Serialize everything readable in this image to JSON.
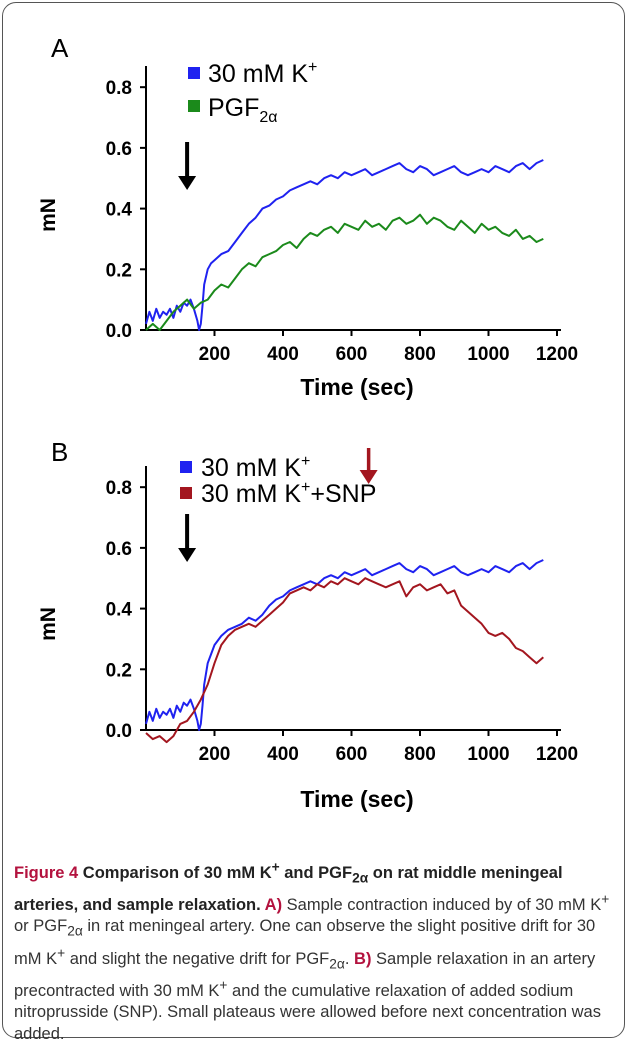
{
  "chart_data": [
    {
      "panel": "A",
      "type": "line",
      "xlabel": "Time (sec)",
      "ylabel": "mN",
      "xlim": [
        0,
        1200
      ],
      "ylim": [
        0,
        0.85
      ],
      "xticks": [
        "200",
        "400",
        "600",
        "800",
        "1000",
        "1200"
      ],
      "yticks": [
        "0.0",
        "0.2",
        "0.4",
        "0.6",
        "0.8"
      ],
      "legend_position": "top-left",
      "arrow_color": "#000000",
      "arrow_x": 120,
      "series": [
        {
          "label_main": "30 mM K",
          "label_sup": "+",
          "color": "#1f22f0",
          "x": [
            0,
            10,
            20,
            30,
            40,
            50,
            60,
            70,
            80,
            90,
            100,
            110,
            120,
            130,
            140,
            150,
            155,
            160,
            165,
            170,
            180,
            190,
            200,
            220,
            240,
            260,
            280,
            300,
            320,
            340,
            360,
            380,
            400,
            420,
            440,
            460,
            480,
            500,
            520,
            540,
            560,
            580,
            600,
            620,
            640,
            660,
            680,
            700,
            720,
            740,
            760,
            780,
            800,
            820,
            840,
            860,
            880,
            900,
            920,
            940,
            960,
            980,
            1000,
            1020,
            1040,
            1060,
            1080,
            1100,
            1120,
            1140,
            1160
          ],
          "y": [
            0.02,
            0.06,
            0.03,
            0.07,
            0.04,
            0.06,
            0.05,
            0.07,
            0.04,
            0.08,
            0.06,
            0.09,
            0.08,
            0.1,
            0.07,
            0.03,
            0.0,
            0.02,
            0.08,
            0.15,
            0.2,
            0.22,
            0.23,
            0.25,
            0.26,
            0.29,
            0.32,
            0.35,
            0.37,
            0.4,
            0.41,
            0.43,
            0.44,
            0.46,
            0.47,
            0.48,
            0.49,
            0.48,
            0.5,
            0.51,
            0.5,
            0.52,
            0.51,
            0.52,
            0.53,
            0.51,
            0.52,
            0.53,
            0.54,
            0.55,
            0.53,
            0.52,
            0.54,
            0.53,
            0.51,
            0.52,
            0.53,
            0.54,
            0.52,
            0.51,
            0.52,
            0.53,
            0.52,
            0.54,
            0.53,
            0.52,
            0.54,
            0.55,
            0.53,
            0.55,
            0.56
          ]
        },
        {
          "label_main": "PGF",
          "label_sub": "2α",
          "color": "#1b8a1b",
          "x": [
            0,
            20,
            40,
            60,
            80,
            100,
            120,
            140,
            160,
            180,
            200,
            220,
            240,
            260,
            280,
            300,
            320,
            340,
            360,
            380,
            400,
            420,
            440,
            460,
            480,
            500,
            520,
            540,
            560,
            580,
            600,
            620,
            640,
            660,
            680,
            700,
            720,
            740,
            760,
            780,
            800,
            820,
            840,
            860,
            880,
            900,
            920,
            940,
            960,
            980,
            1000,
            1020,
            1040,
            1060,
            1080,
            1100,
            1120,
            1140,
            1160
          ],
          "y": [
            0.0,
            0.02,
            0.0,
            0.03,
            0.06,
            0.08,
            0.1,
            0.07,
            0.09,
            0.1,
            0.13,
            0.15,
            0.14,
            0.17,
            0.2,
            0.22,
            0.21,
            0.24,
            0.25,
            0.26,
            0.28,
            0.29,
            0.27,
            0.3,
            0.32,
            0.31,
            0.33,
            0.34,
            0.32,
            0.35,
            0.34,
            0.33,
            0.36,
            0.34,
            0.35,
            0.33,
            0.36,
            0.37,
            0.35,
            0.36,
            0.38,
            0.35,
            0.37,
            0.36,
            0.34,
            0.33,
            0.36,
            0.34,
            0.32,
            0.35,
            0.33,
            0.34,
            0.32,
            0.31,
            0.33,
            0.3,
            0.31,
            0.29,
            0.3
          ]
        }
      ]
    },
    {
      "panel": "B",
      "type": "line",
      "xlabel": "Time (sec)",
      "ylabel": "mN",
      "xlim": [
        0,
        1200
      ],
      "ylim": [
        0,
        0.85
      ],
      "xticks": [
        "200",
        "400",
        "600",
        "800",
        "1000",
        "1200"
      ],
      "yticks": [
        "0.0",
        "0.2",
        "0.4",
        "0.6",
        "0.8"
      ],
      "legend_position": "top-left",
      "arrow_color": "#000000",
      "arrow_x": 120,
      "arrow2_color": "#a3161f",
      "arrow2_x": 650,
      "series": [
        {
          "label_main": "30 mM K",
          "label_sup": "+",
          "color": "#1f22f0",
          "x": [
            0,
            10,
            20,
            30,
            40,
            50,
            60,
            70,
            80,
            90,
            100,
            110,
            120,
            130,
            140,
            150,
            155,
            160,
            165,
            170,
            180,
            190,
            200,
            220,
            240,
            260,
            280,
            300,
            320,
            340,
            360,
            380,
            400,
            420,
            440,
            460,
            480,
            500,
            520,
            540,
            560,
            580,
            600,
            620,
            640,
            660,
            680,
            700,
            720,
            740,
            760,
            780,
            800,
            820,
            840,
            860,
            880,
            900,
            920,
            940,
            960,
            980,
            1000,
            1020,
            1040,
            1060,
            1080,
            1100,
            1120,
            1140,
            1160
          ],
          "y": [
            0.02,
            0.06,
            0.03,
            0.07,
            0.04,
            0.06,
            0.05,
            0.07,
            0.04,
            0.08,
            0.06,
            0.09,
            0.08,
            0.1,
            0.07,
            0.03,
            0.0,
            0.02,
            0.08,
            0.15,
            0.22,
            0.25,
            0.28,
            0.31,
            0.33,
            0.34,
            0.35,
            0.37,
            0.36,
            0.38,
            0.41,
            0.43,
            0.44,
            0.46,
            0.47,
            0.48,
            0.49,
            0.48,
            0.5,
            0.51,
            0.5,
            0.52,
            0.51,
            0.52,
            0.53,
            0.51,
            0.52,
            0.53,
            0.54,
            0.55,
            0.53,
            0.52,
            0.54,
            0.53,
            0.51,
            0.52,
            0.53,
            0.54,
            0.52,
            0.51,
            0.52,
            0.53,
            0.52,
            0.54,
            0.53,
            0.52,
            0.54,
            0.55,
            0.53,
            0.55,
            0.56
          ]
        },
        {
          "label_main": "30 mM K",
          "label_sup": "+",
          "label_tail": "+SNP",
          "color": "#a3161f",
          "x": [
            0,
            20,
            40,
            60,
            80,
            100,
            120,
            140,
            160,
            180,
            200,
            220,
            240,
            260,
            280,
            300,
            320,
            340,
            360,
            380,
            400,
            420,
            440,
            460,
            480,
            500,
            520,
            540,
            560,
            580,
            600,
            620,
            640,
            660,
            680,
            700,
            720,
            740,
            760,
            780,
            800,
            820,
            840,
            860,
            880,
            900,
            920,
            940,
            960,
            980,
            1000,
            1020,
            1040,
            1060,
            1080,
            1100,
            1120,
            1140,
            1160
          ],
          "y": [
            -0.01,
            -0.03,
            -0.02,
            -0.04,
            -0.02,
            0.02,
            0.03,
            0.06,
            0.1,
            0.15,
            0.22,
            0.28,
            0.31,
            0.33,
            0.34,
            0.35,
            0.34,
            0.36,
            0.38,
            0.4,
            0.42,
            0.45,
            0.46,
            0.47,
            0.46,
            0.48,
            0.47,
            0.49,
            0.48,
            0.5,
            0.49,
            0.48,
            0.5,
            0.49,
            0.48,
            0.47,
            0.48,
            0.49,
            0.44,
            0.47,
            0.48,
            0.46,
            0.47,
            0.48,
            0.45,
            0.46,
            0.41,
            0.39,
            0.37,
            0.35,
            0.32,
            0.31,
            0.32,
            0.3,
            0.27,
            0.26,
            0.24,
            0.22,
            0.24
          ]
        }
      ]
    }
  ],
  "caption": {
    "fig_label": "Figure 4",
    "title_p1": " Comparison of 30 mM K",
    "sup_plus": "+",
    "title_p2": " and PGF",
    "sub_2a": "2α",
    "title_p3": " on rat middle meningeal arteries, and sample relaxation.",
    "a_label": " A)",
    "a_p1": " Sample contraction induced by of 30 mM K",
    "a_p2": " or PGF",
    "a_p3": " in rat meningeal artery. One can observe the slight positive drift for 30 mM K",
    "a_p4": " and slight the negative drift for PGF",
    "a_p5": ".",
    "b_label": " B)",
    "b_p1": " Sample relaxation in an artery precontracted with 30 mM K",
    "b_p2": " and the cumulative relaxation of added sodium nitroprusside (SNP). Small plateaus were allowed before next concentration was added."
  }
}
